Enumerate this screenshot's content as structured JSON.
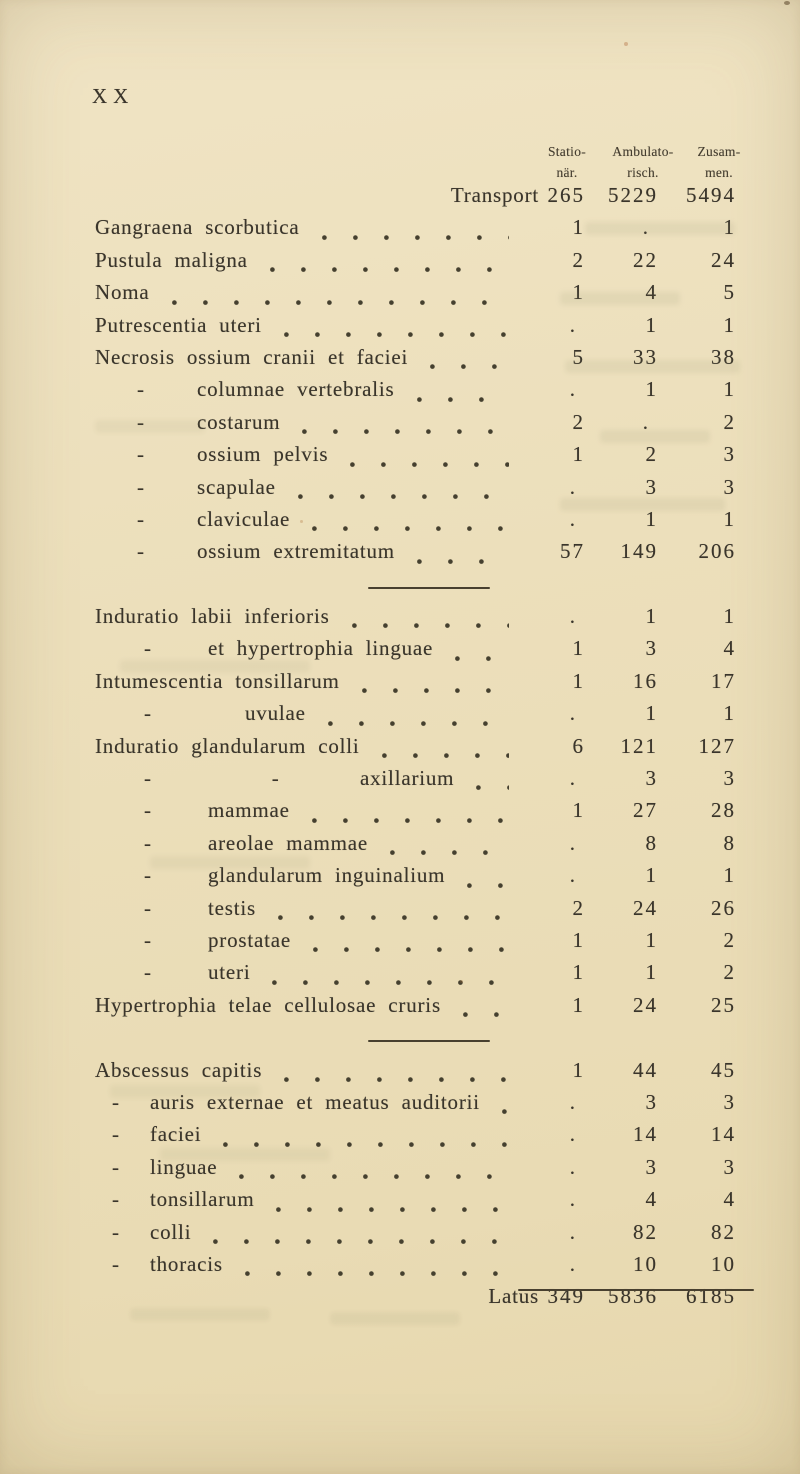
{
  "page": {
    "number": "XX"
  },
  "colors": {
    "paper": "#ecdfbb",
    "ink": "#3a352b",
    "rule": "#48402f"
  },
  "table": {
    "headers": [
      {
        "top": "Statio-",
        "bottom": "när."
      },
      {
        "top": "Ambulato-",
        "bottom": "risch."
      },
      {
        "top": "Zusam-",
        "bottom": "men."
      }
    ],
    "rows": [
      {
        "label": "Transport",
        "cls": "rT",
        "dashes": 0,
        "values": [
          "265",
          "5229",
          "5494"
        ]
      },
      {
        "label": "Gangraena scorbutica",
        "cls": "r0",
        "dashes": 0,
        "values": [
          "1",
          ".",
          "1"
        ]
      },
      {
        "label": "Pustula maligna",
        "cls": "r0",
        "dashes": 0,
        "values": [
          "2",
          "22",
          "24"
        ]
      },
      {
        "label": "Noma",
        "cls": "r0",
        "dashes": 0,
        "values": [
          "1",
          "4",
          "5"
        ]
      },
      {
        "label": "Putrescentia uteri",
        "cls": "r0",
        "dashes": 0,
        "values": [
          ".",
          "1",
          "1"
        ]
      },
      {
        "label": "Necrosis ossium cranii et faciei",
        "cls": "r0",
        "dashes": 0,
        "values": [
          "5",
          "33",
          "38"
        ]
      },
      {
        "label": "columnae vertebralis",
        "cls": "r1",
        "dashes": 1,
        "values": [
          ".",
          "1",
          "1"
        ]
      },
      {
        "label": "costarum",
        "cls": "r1",
        "dashes": 1,
        "values": [
          "2",
          ".",
          "2"
        ]
      },
      {
        "label": "ossium pelvis",
        "cls": "r1",
        "dashes": 1,
        "values": [
          "1",
          "2",
          "3"
        ]
      },
      {
        "label": "scapulae",
        "cls": "r1",
        "dashes": 1,
        "values": [
          ".",
          "3",
          "3"
        ]
      },
      {
        "label": "claviculae",
        "cls": "r1",
        "dashes": 1,
        "values": [
          ".",
          "1",
          "1"
        ]
      },
      {
        "label": "ossium extremitatum",
        "cls": "r1",
        "dashes": 1,
        "values": [
          "57",
          "149",
          "206"
        ]
      },
      {
        "divider": true
      },
      {
        "label": "Induratio labii inferioris",
        "cls": "r0",
        "dashes": 0,
        "values": [
          ".",
          "1",
          "1"
        ]
      },
      {
        "label": "et hypertrophia linguae",
        "cls": "r1i",
        "dashes": 1,
        "values": [
          "1",
          "3",
          "4"
        ]
      },
      {
        "label": "Intumescentia tonsillarum",
        "cls": "r0",
        "dashes": 0,
        "values": [
          "1",
          "16",
          "17"
        ]
      },
      {
        "label": "uvulae",
        "cls": "r1u",
        "dashes": 1,
        "values": [
          ".",
          "1",
          "1"
        ]
      },
      {
        "label": "Induratio glandularum colli",
        "cls": "r0",
        "dashes": 0,
        "values": [
          "6",
          "121",
          "127"
        ]
      },
      {
        "label": "axillarium",
        "cls": "r2",
        "dashes": 2,
        "values": [
          ".",
          "3",
          "3"
        ]
      },
      {
        "label": "mammae",
        "cls": "r1i",
        "dashes": 1,
        "values": [
          "1",
          "27",
          "28"
        ]
      },
      {
        "label": "areolae mammae",
        "cls": "r1i",
        "dashes": 1,
        "values": [
          ".",
          "8",
          "8"
        ]
      },
      {
        "label": "glandularum inguinalium",
        "cls": "r1i",
        "dashes": 1,
        "values": [
          ".",
          "1",
          "1"
        ]
      },
      {
        "label": "testis",
        "cls": "r1i",
        "dashes": 1,
        "values": [
          "2",
          "24",
          "26"
        ]
      },
      {
        "label": "prostatae",
        "cls": "r1i",
        "dashes": 1,
        "values": [
          "1",
          "1",
          "2"
        ]
      },
      {
        "label": "uteri",
        "cls": "r1i",
        "dashes": 1,
        "values": [
          "1",
          "1",
          "2"
        ]
      },
      {
        "label": "Hypertrophia telae cellulosae cruris",
        "cls": "r0",
        "dashes": 0,
        "values": [
          "1",
          "24",
          "25"
        ]
      },
      {
        "divider": true
      },
      {
        "label": "Abscessus capitis",
        "cls": "r0",
        "dashes": 0,
        "values": [
          "1",
          "44",
          "45"
        ]
      },
      {
        "label": "auris externae et meatus auditorii",
        "cls": "rA",
        "dashes": 1,
        "values": [
          ".",
          "3",
          "3"
        ]
      },
      {
        "label": "faciei",
        "cls": "rA",
        "dashes": 1,
        "values": [
          ".",
          "14",
          "14"
        ]
      },
      {
        "label": "linguae",
        "cls": "rA",
        "dashes": 1,
        "values": [
          ".",
          "3",
          "3"
        ]
      },
      {
        "label": "tonsillarum",
        "cls": "rA",
        "dashes": 1,
        "values": [
          ".",
          "4",
          "4"
        ]
      },
      {
        "label": "colli",
        "cls": "rA",
        "dashes": 1,
        "values": [
          ".",
          "82",
          "82"
        ]
      },
      {
        "label": "thoracis",
        "cls": "rA",
        "dashes": 1,
        "values": [
          ".",
          "10",
          "10"
        ]
      },
      {
        "label": "Latus",
        "cls": "rL",
        "dashes": 0,
        "values": [
          "349",
          "5836",
          "6185"
        ]
      }
    ]
  }
}
